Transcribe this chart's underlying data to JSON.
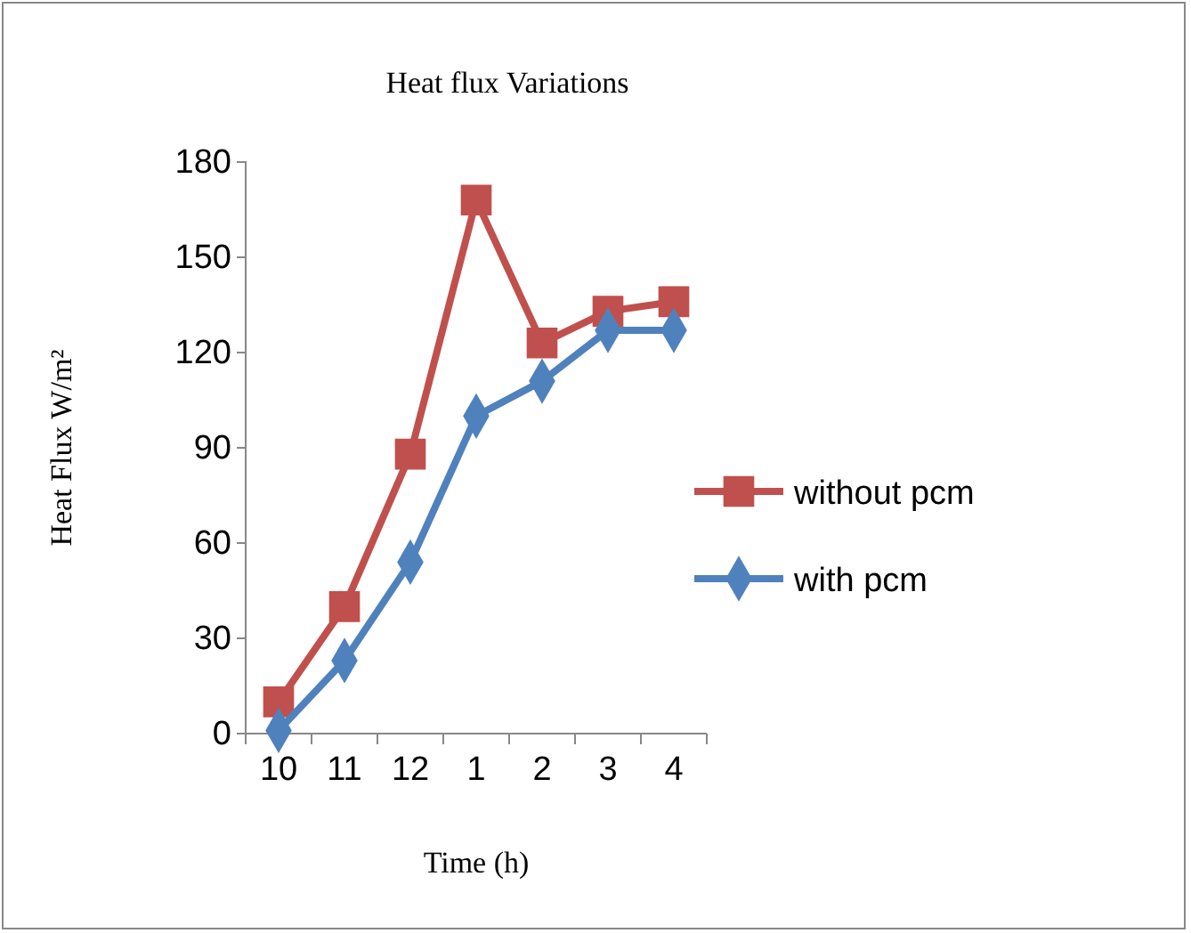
{
  "chart_data": {
    "type": "line",
    "title": "Heat flux Variations",
    "xlabel": "Time (h)",
    "ylabel": "Heat Flux W/m²",
    "categories": [
      "10",
      "11",
      "12",
      "1",
      "2",
      "3",
      "4"
    ],
    "series": [
      {
        "name": "without pcm",
        "color": "#c0504d",
        "marker": "square",
        "values": [
          10,
          40,
          88,
          168,
          123,
          133,
          136
        ]
      },
      {
        "name": "with pcm",
        "color": "#4f81bd",
        "marker": "diamond",
        "values": [
          1,
          23,
          54,
          100,
          111,
          127,
          127
        ]
      }
    ],
    "ylim": [
      0,
      180
    ],
    "yticks": [
      0,
      30,
      60,
      90,
      120,
      150,
      180
    ],
    "grid": false,
    "legend": "right",
    "line_style": "solid"
  }
}
